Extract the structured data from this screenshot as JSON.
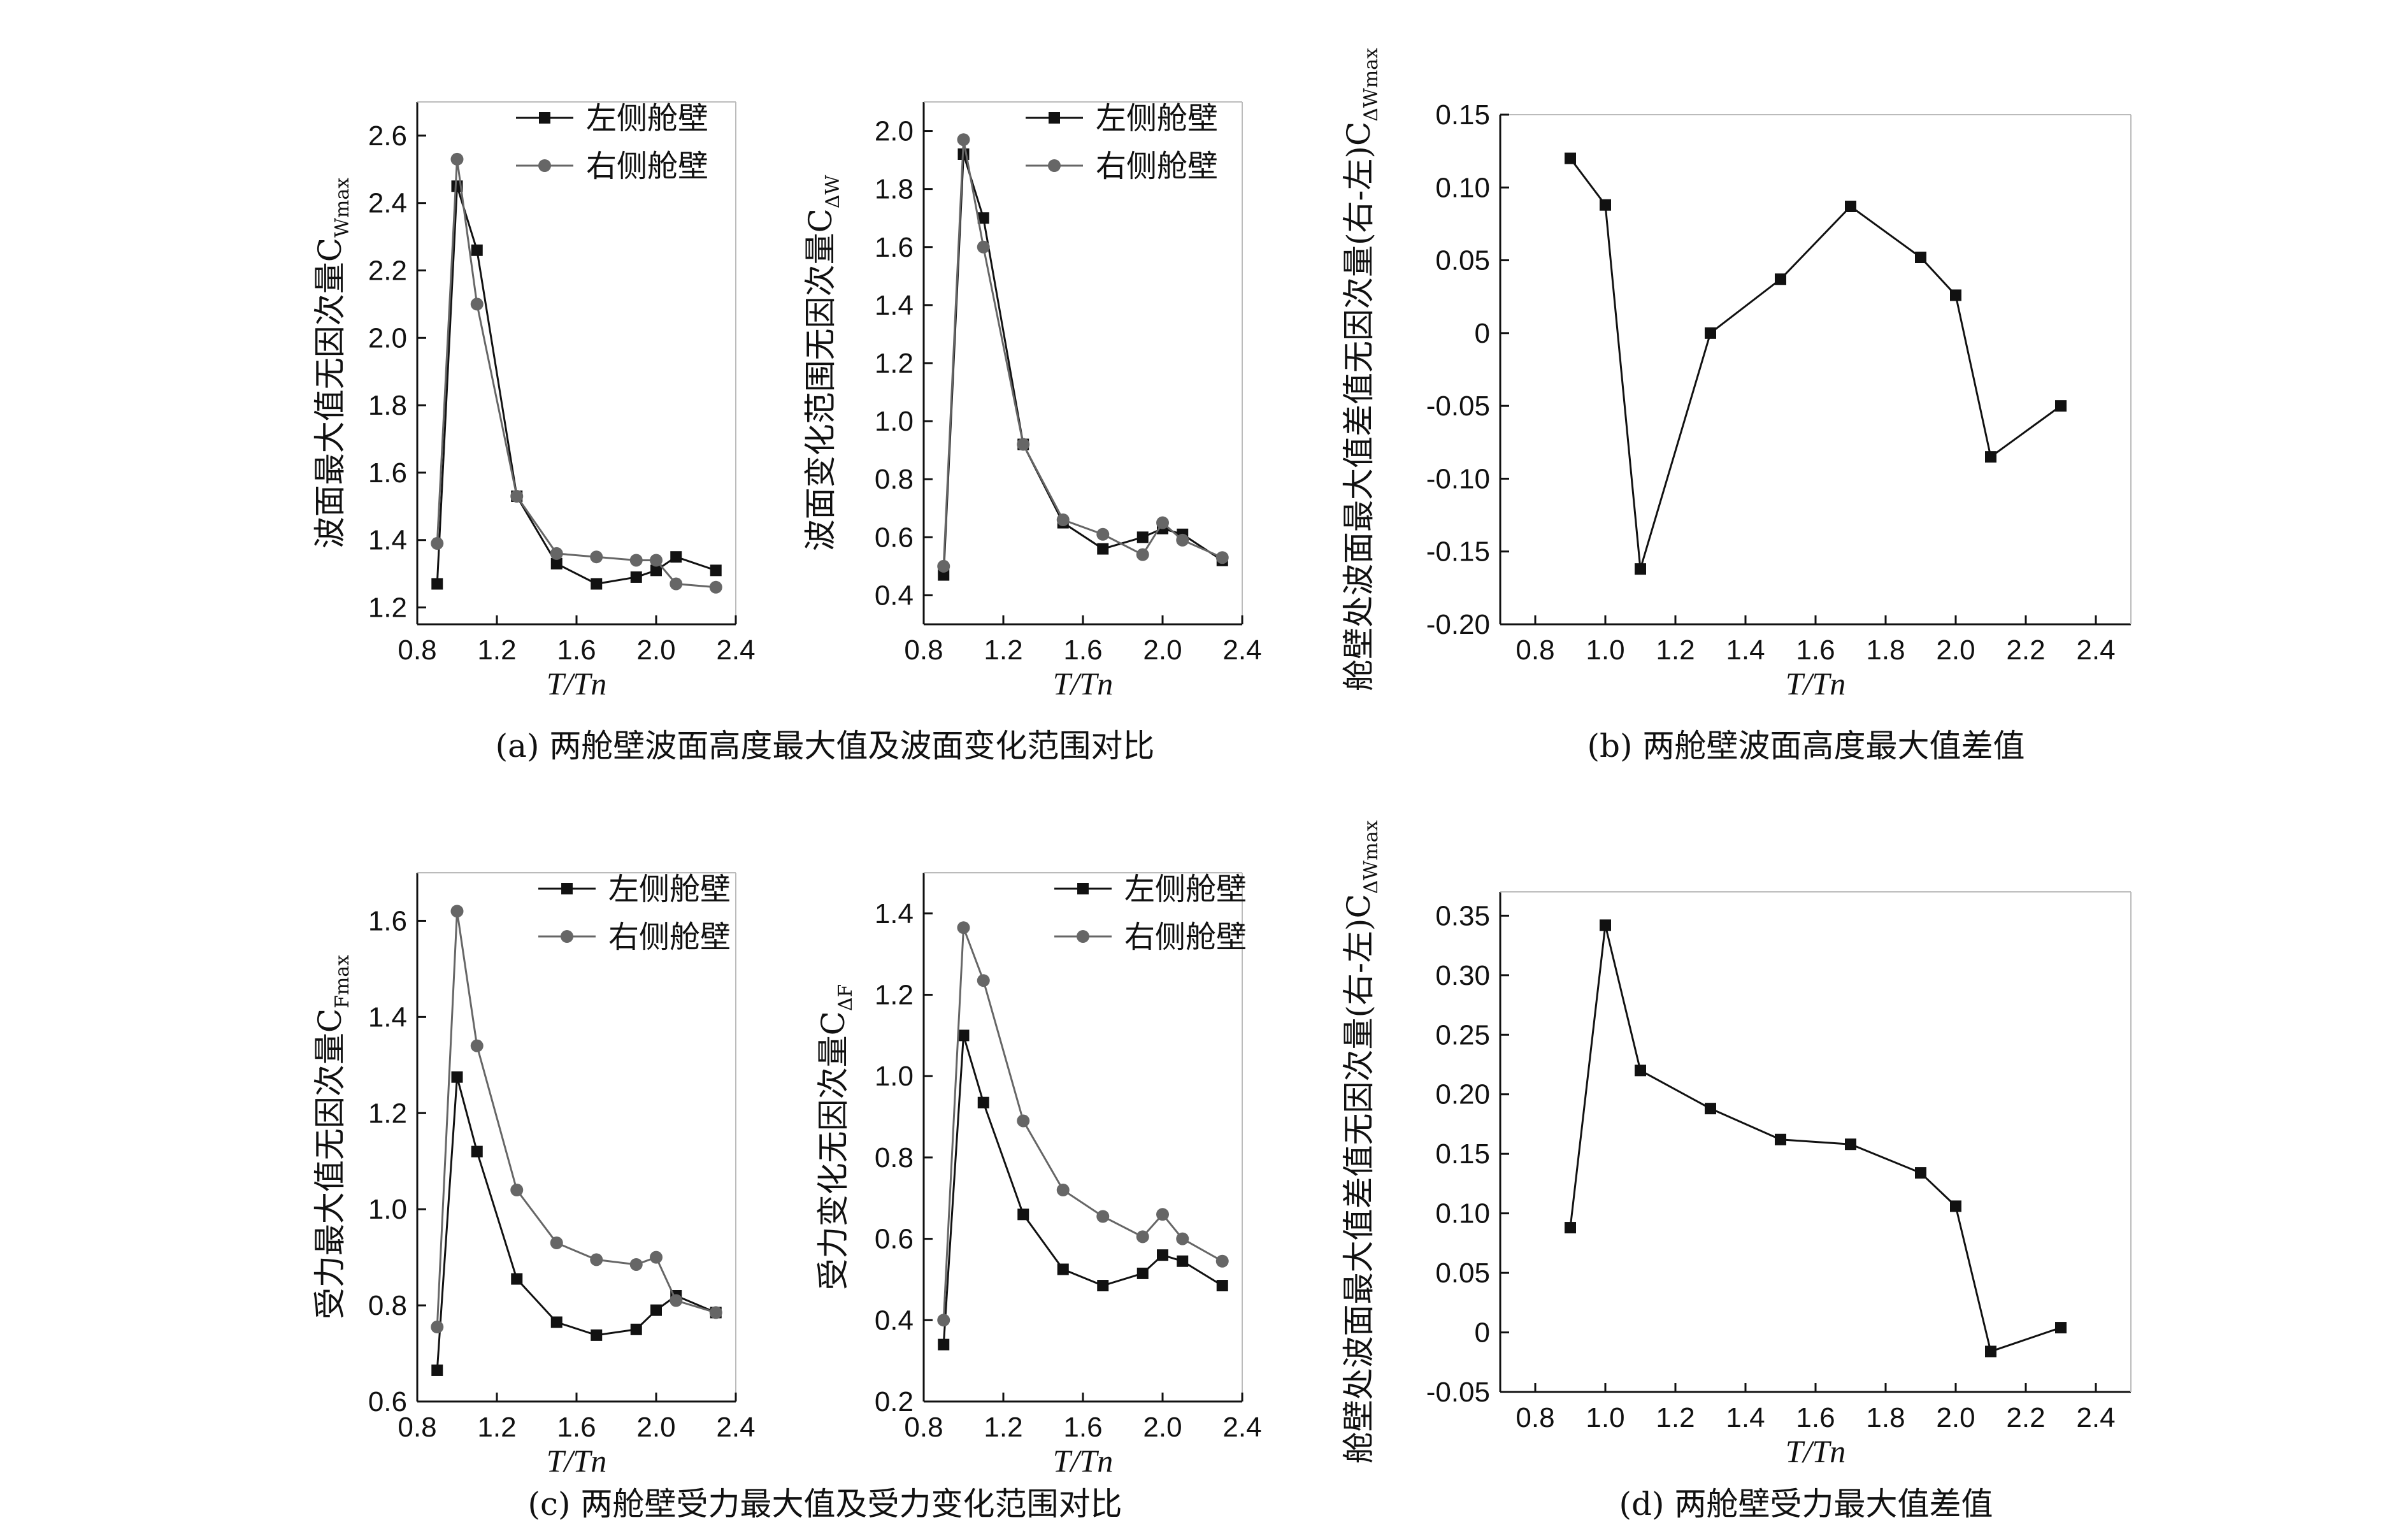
{
  "chart_data": [
    {
      "id": "a1",
      "type": "line",
      "x": [
        0.9,
        1.0,
        1.1,
        1.3,
        1.5,
        1.7,
        1.9,
        2.0,
        2.1,
        2.3
      ],
      "series": [
        {
          "name": "左侧舱壁",
          "marker": "square",
          "color": "#111111",
          "values": [
            1.27,
            2.45,
            2.26,
            1.53,
            1.33,
            1.27,
            1.29,
            1.31,
            1.35,
            1.31
          ]
        },
        {
          "name": "右侧舱壁",
          "marker": "circle",
          "color": "#666666",
          "values": [
            1.39,
            2.53,
            2.1,
            1.53,
            1.36,
            1.35,
            1.34,
            1.34,
            1.27,
            1.26
          ]
        }
      ],
      "xlabel": "T/Tn",
      "ylabel_main": "波面最大值无因次量C",
      "ylabel_sub": "Wmax",
      "xlim": [
        0.8,
        2.4
      ],
      "ylim": [
        1.15,
        2.7
      ],
      "xticks": [
        "0.8",
        "1.2",
        "1.6",
        "2.0",
        "2.4"
      ],
      "yticks": [
        "1.2",
        "1.4",
        "1.6",
        "1.8",
        "2.0",
        "2.2",
        "2.4",
        "2.6"
      ],
      "legend": "top-right"
    },
    {
      "id": "a2",
      "type": "line",
      "x": [
        0.9,
        1.0,
        1.1,
        1.3,
        1.5,
        1.7,
        1.9,
        2.0,
        2.1,
        2.3
      ],
      "series": [
        {
          "name": "左侧舱壁",
          "marker": "square",
          "color": "#111111",
          "values": [
            0.47,
            1.92,
            1.7,
            0.92,
            0.65,
            0.56,
            0.6,
            0.63,
            0.61,
            0.52
          ]
        },
        {
          "name": "右侧舱壁",
          "marker": "circle",
          "color": "#666666",
          "values": [
            0.5,
            1.97,
            1.6,
            0.92,
            0.66,
            0.61,
            0.54,
            0.65,
            0.59,
            0.53
          ]
        }
      ],
      "xlabel": "T/Tn",
      "ylabel_main": "波面变化范围无因次量C",
      "ylabel_sub": "ΔW",
      "xlim": [
        0.8,
        2.4
      ],
      "ylim": [
        0.3,
        2.1
      ],
      "xticks": [
        "0.8",
        "1.2",
        "1.6",
        "2.0",
        "2.4"
      ],
      "yticks": [
        "0.4",
        "0.6",
        "0.8",
        "1.0",
        "1.2",
        "1.4",
        "1.6",
        "1.8",
        "2.0"
      ],
      "legend": "top-right"
    },
    {
      "id": "b",
      "type": "line",
      "x": [
        0.9,
        1.0,
        1.1,
        1.3,
        1.5,
        1.7,
        1.9,
        2.0,
        2.1,
        2.3
      ],
      "series": [
        {
          "name": "差值",
          "marker": "square",
          "color": "#111111",
          "values": [
            0.12,
            0.088,
            -0.162,
            0.0,
            0.037,
            0.087,
            0.052,
            0.026,
            -0.085,
            -0.05
          ]
        }
      ],
      "xlabel": "T/Tn",
      "ylabel_main": "舱壁处波面最大值差值无因次量(右-左)C",
      "ylabel_sub": "ΔWmax",
      "xlim": [
        0.7,
        2.5
      ],
      "ylim": [
        -0.2,
        0.15
      ],
      "xticks": [
        "0.8",
        "1.0",
        "1.2",
        "1.4",
        "1.6",
        "1.8",
        "2.0",
        "2.2",
        "2.4"
      ],
      "yticks": [
        "-0.20",
        "-0.15",
        "-0.10",
        "-0.05",
        "0",
        "0.05",
        "0.10",
        "0.15"
      ]
    },
    {
      "id": "c1",
      "type": "line",
      "x": [
        0.9,
        1.0,
        1.1,
        1.3,
        1.5,
        1.7,
        1.9,
        2.0,
        2.1,
        2.3
      ],
      "series": [
        {
          "name": "左侧舱壁",
          "marker": "square",
          "color": "#111111",
          "values": [
            0.665,
            1.275,
            1.12,
            0.855,
            0.765,
            0.738,
            0.75,
            0.79,
            0.82,
            0.785
          ]
        },
        {
          "name": "右侧舱壁",
          "marker": "circle",
          "color": "#666666",
          "values": [
            0.755,
            1.62,
            1.34,
            1.04,
            0.93,
            0.895,
            0.885,
            0.9,
            0.81,
            0.785
          ]
        }
      ],
      "xlabel": "T/Tn",
      "ylabel_main": "受力最大值无因次量C",
      "ylabel_sub": "Fmax",
      "xlim": [
        0.8,
        2.4
      ],
      "ylim": [
        0.6,
        1.7
      ],
      "xticks": [
        "0.8",
        "1.2",
        "1.6",
        "2.0",
        "2.4"
      ],
      "yticks": [
        "0.6",
        "0.8",
        "1.0",
        "1.2",
        "1.4",
        "1.6"
      ],
      "legend": "top-right"
    },
    {
      "id": "c2",
      "type": "line",
      "x": [
        0.9,
        1.0,
        1.1,
        1.3,
        1.5,
        1.7,
        1.9,
        2.0,
        2.1,
        2.3
      ],
      "series": [
        {
          "name": "左侧舱壁",
          "marker": "square",
          "color": "#111111",
          "values": [
            0.34,
            1.1,
            0.935,
            0.66,
            0.525,
            0.485,
            0.515,
            0.56,
            0.545,
            0.485
          ]
        },
        {
          "name": "右侧舱壁",
          "marker": "circle",
          "color": "#666666",
          "values": [
            0.4,
            1.365,
            1.235,
            0.89,
            0.72,
            0.655,
            0.605,
            0.66,
            0.6,
            0.545
          ]
        }
      ],
      "xlabel": "T/Tn",
      "ylabel_main": "受力变化无因次量C",
      "ylabel_sub": "ΔF",
      "xlim": [
        0.8,
        2.4
      ],
      "ylim": [
        0.2,
        1.5
      ],
      "xticks": [
        "0.8",
        "1.2",
        "1.6",
        "2.0",
        "2.4"
      ],
      "yticks": [
        "0.2",
        "0.4",
        "0.6",
        "0.8",
        "1.0",
        "1.2",
        "1.4"
      ],
      "legend": "top-right"
    },
    {
      "id": "d",
      "type": "line",
      "x": [
        0.9,
        1.0,
        1.1,
        1.3,
        1.5,
        1.7,
        1.9,
        2.0,
        2.1,
        2.3
      ],
      "series": [
        {
          "name": "差值",
          "marker": "square",
          "color": "#111111",
          "values": [
            0.088,
            0.342,
            0.22,
            0.188,
            0.162,
            0.158,
            0.134,
            0.106,
            -0.016,
            0.004
          ]
        }
      ],
      "xlabel": "T/Tn",
      "ylabel_main": "舱壁处波面最大值差值无因次量(右-左)C",
      "ylabel_sub": "ΔWmax",
      "xlim": [
        0.7,
        2.5
      ],
      "ylim": [
        -0.05,
        0.37
      ],
      "xticks": [
        "0.8",
        "1.0",
        "1.2",
        "1.4",
        "1.6",
        "1.8",
        "2.0",
        "2.2",
        "2.4"
      ],
      "yticks": [
        "-0.05",
        "0",
        "0.05",
        "0.10",
        "0.15",
        "0.20",
        "0.25",
        "0.30",
        "0.35"
      ]
    }
  ],
  "captions": {
    "a": "(a) 两舱壁波面高度最大值及波面变化范围对比",
    "b": "(b) 两舱壁波面高度最大值差值",
    "c": "(c) 两舱壁受力最大值及受力变化范围对比",
    "d": "(d) 两舱壁受力最大值差值"
  }
}
